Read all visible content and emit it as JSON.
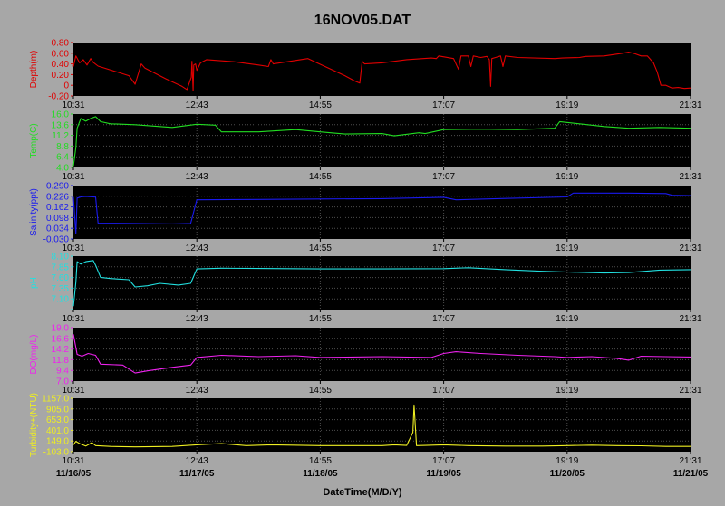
{
  "window": {
    "title": "16NOV05.DAT"
  },
  "chart_data": {
    "type": "line",
    "title": "16NOV05.DAT",
    "xlabel": "DateTime(M/D/Y)",
    "background": "#a7a7a7",
    "plot_background": "#000000",
    "time_ticks": [
      "10:31",
      "12:43",
      "14:55",
      "17:07",
      "19:19",
      "21:31"
    ],
    "date_ticks": [
      "11/16/05",
      "11/17/05",
      "11/18/05",
      "11/19/05",
      "11/20/05",
      "11/21/05"
    ],
    "x_range_days": [
      0,
      5
    ],
    "panels": [
      {
        "name": "Depth(m)",
        "color": "#e00000",
        "ylim": [
          0.8,
          -0.2
        ],
        "yticks": [
          "-0.20",
          "0",
          "0.20",
          "0.40",
          "0.60",
          "0.80"
        ],
        "grid": false,
        "points": [
          [
            0.0,
            0.25
          ],
          [
            0.02,
            0.05
          ],
          [
            0.05,
            0.18
          ],
          [
            0.08,
            0.12
          ],
          [
            0.11,
            0.22
          ],
          [
            0.14,
            0.1
          ],
          [
            0.16,
            0.17
          ],
          [
            0.2,
            0.24
          ],
          [
            0.45,
            0.42
          ],
          [
            0.5,
            0.58
          ],
          [
            0.55,
            0.2
          ],
          [
            0.58,
            0.28
          ],
          [
            0.75,
            0.48
          ],
          [
            0.88,
            0.62
          ],
          [
            0.92,
            0.68
          ],
          [
            0.955,
            0.45
          ],
          [
            0.96,
            0.15
          ],
          [
            0.965,
            0.4
          ],
          [
            0.97,
            0.7
          ],
          [
            0.975,
            0.22
          ],
          [
            0.99,
            0.2
          ],
          [
            1.0,
            0.32
          ],
          [
            1.03,
            0.18
          ],
          [
            1.08,
            0.12
          ],
          [
            1.3,
            0.16
          ],
          [
            1.5,
            0.22
          ],
          [
            1.58,
            0.25
          ],
          [
            1.6,
            0.12
          ],
          [
            1.62,
            0.2
          ],
          [
            1.9,
            0.1
          ],
          [
            2.2,
            0.42
          ],
          [
            2.28,
            0.52
          ],
          [
            2.32,
            0.56
          ],
          [
            2.34,
            0.15
          ],
          [
            2.36,
            0.2
          ],
          [
            2.5,
            0.18
          ],
          [
            2.7,
            0.12
          ],
          [
            2.9,
            0.09
          ],
          [
            2.94,
            0.1
          ],
          [
            2.96,
            0.05
          ],
          [
            3.08,
            0.1
          ],
          [
            3.12,
            0.3
          ],
          [
            3.14,
            0.05
          ],
          [
            3.2,
            0.05
          ],
          [
            3.22,
            0.25
          ],
          [
            3.24,
            0.05
          ],
          [
            3.3,
            0.08
          ],
          [
            3.35,
            0.06
          ],
          [
            3.37,
            0.12
          ],
          [
            3.38,
            0.62
          ],
          [
            3.39,
            0.1
          ],
          [
            3.42,
            0.08
          ],
          [
            3.46,
            0.05
          ],
          [
            3.48,
            0.25
          ],
          [
            3.5,
            0.05
          ],
          [
            3.6,
            0.08
          ],
          [
            3.9,
            0.1
          ],
          [
            3.96,
            0.09
          ],
          [
            4.1,
            0.08
          ],
          [
            4.15,
            0.06
          ],
          [
            4.3,
            0.05
          ],
          [
            4.45,
            0.0
          ],
          [
            4.5,
            -0.02
          ],
          [
            4.55,
            0.01
          ],
          [
            4.6,
            0.05
          ],
          [
            4.65,
            0.05
          ],
          [
            4.7,
            0.18
          ],
          [
            4.73,
            0.35
          ],
          [
            4.76,
            0.6
          ],
          [
            4.8,
            0.6
          ],
          [
            4.85,
            0.65
          ],
          [
            4.9,
            0.64
          ],
          [
            4.95,
            0.66
          ],
          [
            5.0,
            0.65
          ]
        ]
      },
      {
        "name": "Temp(C)",
        "color": "#22dd22",
        "ylim": [
          4.0,
          16.0
        ],
        "yticks": [
          "4.0",
          "6.4",
          "8.8",
          "11.2",
          "13.6",
          "16.0"
        ],
        "grid": true,
        "points": [
          [
            0.0,
            4.3
          ],
          [
            0.02,
            8.5
          ],
          [
            0.03,
            12.8
          ],
          [
            0.06,
            15.0
          ],
          [
            0.1,
            14.4
          ],
          [
            0.14,
            15.0
          ],
          [
            0.18,
            15.4
          ],
          [
            0.22,
            14.3
          ],
          [
            0.3,
            13.8
          ],
          [
            0.5,
            13.6
          ],
          [
            0.8,
            13.0
          ],
          [
            1.0,
            13.7
          ],
          [
            1.15,
            13.5
          ],
          [
            1.2,
            12.0
          ],
          [
            1.5,
            12.0
          ],
          [
            1.8,
            12.5
          ],
          [
            2.0,
            12.0
          ],
          [
            2.2,
            11.5
          ],
          [
            2.5,
            11.6
          ],
          [
            2.6,
            11.1
          ],
          [
            2.8,
            11.8
          ],
          [
            2.85,
            11.6
          ],
          [
            3.0,
            12.5
          ],
          [
            3.3,
            12.6
          ],
          [
            3.6,
            12.5
          ],
          [
            3.7,
            12.6
          ],
          [
            3.9,
            12.8
          ],
          [
            3.94,
            14.3
          ],
          [
            4.1,
            13.8
          ],
          [
            4.3,
            13.2
          ],
          [
            4.5,
            12.8
          ],
          [
            4.75,
            13.0
          ],
          [
            5.0,
            12.8
          ]
        ]
      },
      {
        "name": "Salinity(ppt)",
        "color": "#1a1aee",
        "ylim": [
          -0.03,
          0.29
        ],
        "yticks": [
          "-0.030",
          "0.034",
          "0.098",
          "0.162",
          "0.226",
          "0.290"
        ],
        "grid": true,
        "points": [
          [
            0.0,
            0.22
          ],
          [
            0.02,
            0.0
          ],
          [
            0.03,
            0.215
          ],
          [
            0.06,
            0.222
          ],
          [
            0.1,
            0.225
          ],
          [
            0.18,
            0.221
          ],
          [
            0.2,
            0.065
          ],
          [
            0.5,
            0.063
          ],
          [
            0.8,
            0.06
          ],
          [
            0.95,
            0.063
          ],
          [
            1.0,
            0.205
          ],
          [
            1.5,
            0.207
          ],
          [
            2.0,
            0.21
          ],
          [
            2.5,
            0.212
          ],
          [
            3.0,
            0.22
          ],
          [
            3.1,
            0.205
          ],
          [
            3.5,
            0.213
          ],
          [
            4.0,
            0.222
          ],
          [
            4.05,
            0.245
          ],
          [
            4.5,
            0.245
          ],
          [
            4.8,
            0.242
          ],
          [
            4.85,
            0.232
          ],
          [
            5.0,
            0.23
          ]
        ]
      },
      {
        "name": "pH",
        "color": "#22e0e0",
        "ylim": [
          6.26,
          8.48
        ],
        "yticks": [
          "",
          "7.10",
          "7.35",
          "7.60",
          "7.85",
          "8.10"
        ],
        "grid": true,
        "points": [
          [
            0.0,
            6.4
          ],
          [
            0.02,
            7.4
          ],
          [
            0.03,
            8.25
          ],
          [
            0.06,
            8.15
          ],
          [
            0.1,
            8.25
          ],
          [
            0.16,
            8.3
          ],
          [
            0.18,
            8.1
          ],
          [
            0.22,
            7.6
          ],
          [
            0.3,
            7.55
          ],
          [
            0.45,
            7.5
          ],
          [
            0.5,
            7.2
          ],
          [
            0.6,
            7.25
          ],
          [
            0.7,
            7.35
          ],
          [
            0.85,
            7.28
          ],
          [
            0.95,
            7.35
          ],
          [
            1.0,
            7.95
          ],
          [
            1.2,
            7.98
          ],
          [
            1.5,
            7.97
          ],
          [
            2.0,
            7.95
          ],
          [
            2.5,
            7.95
          ],
          [
            3.0,
            7.96
          ],
          [
            3.2,
            8.0
          ],
          [
            3.5,
            7.92
          ],
          [
            3.8,
            7.85
          ],
          [
            4.0,
            7.82
          ],
          [
            4.3,
            7.78
          ],
          [
            4.5,
            7.8
          ],
          [
            4.75,
            7.9
          ],
          [
            5.0,
            7.92
          ]
        ]
      },
      {
        "name": "DO(mg/L)",
        "color": "#ee22ee",
        "ylim": [
          7.0,
          19.0
        ],
        "yticks": [
          "7.0",
          "9.4",
          "11.8",
          "14.2",
          "16.6",
          "19.0"
        ],
        "grid": true,
        "points": [
          [
            0.0,
            17.5
          ],
          [
            0.03,
            13.0
          ],
          [
            0.07,
            12.6
          ],
          [
            0.12,
            13.2
          ],
          [
            0.18,
            12.8
          ],
          [
            0.22,
            10.8
          ],
          [
            0.4,
            10.6
          ],
          [
            0.5,
            8.8
          ],
          [
            0.6,
            9.3
          ],
          [
            0.8,
            10.1
          ],
          [
            0.95,
            10.6
          ],
          [
            1.0,
            12.3
          ],
          [
            1.2,
            12.8
          ],
          [
            1.5,
            12.5
          ],
          [
            1.8,
            12.7
          ],
          [
            2.0,
            12.3
          ],
          [
            2.5,
            12.5
          ],
          [
            2.9,
            12.3
          ],
          [
            3.0,
            13.2
          ],
          [
            3.1,
            13.6
          ],
          [
            3.3,
            13.2
          ],
          [
            3.6,
            12.8
          ],
          [
            3.9,
            12.5
          ],
          [
            4.0,
            12.3
          ],
          [
            4.2,
            12.5
          ],
          [
            4.4,
            12.1
          ],
          [
            4.5,
            11.7
          ],
          [
            4.6,
            12.6
          ],
          [
            4.8,
            12.5
          ],
          [
            5.0,
            12.4
          ]
        ]
      },
      {
        "name": "Turbidity+(NTU)",
        "color": "#eeee22",
        "ylim": [
          -103.0,
          1157.0
        ],
        "yticks": [
          "-103.0",
          "149.0",
          "401.0",
          "653.0",
          "905.0",
          "1157.0"
        ],
        "grid": true,
        "points": [
          [
            0.0,
            60
          ],
          [
            0.02,
            140
          ],
          [
            0.05,
            90
          ],
          [
            0.1,
            30
          ],
          [
            0.15,
            110
          ],
          [
            0.18,
            40
          ],
          [
            0.3,
            20
          ],
          [
            0.5,
            10
          ],
          [
            0.8,
            20
          ],
          [
            1.0,
            60
          ],
          [
            1.2,
            90
          ],
          [
            1.4,
            40
          ],
          [
            1.6,
            60
          ],
          [
            2.0,
            40
          ],
          [
            2.5,
            40
          ],
          [
            2.6,
            60
          ],
          [
            2.7,
            45
          ],
          [
            2.75,
            350
          ],
          [
            2.76,
            1000
          ],
          [
            2.78,
            40
          ],
          [
            2.85,
            45
          ],
          [
            3.0,
            60
          ],
          [
            3.2,
            40
          ],
          [
            3.5,
            30
          ],
          [
            3.8,
            30
          ],
          [
            4.0,
            40
          ],
          [
            4.2,
            50
          ],
          [
            4.4,
            40
          ],
          [
            4.6,
            35
          ],
          [
            4.8,
            20
          ],
          [
            5.0,
            20
          ]
        ]
      }
    ]
  }
}
